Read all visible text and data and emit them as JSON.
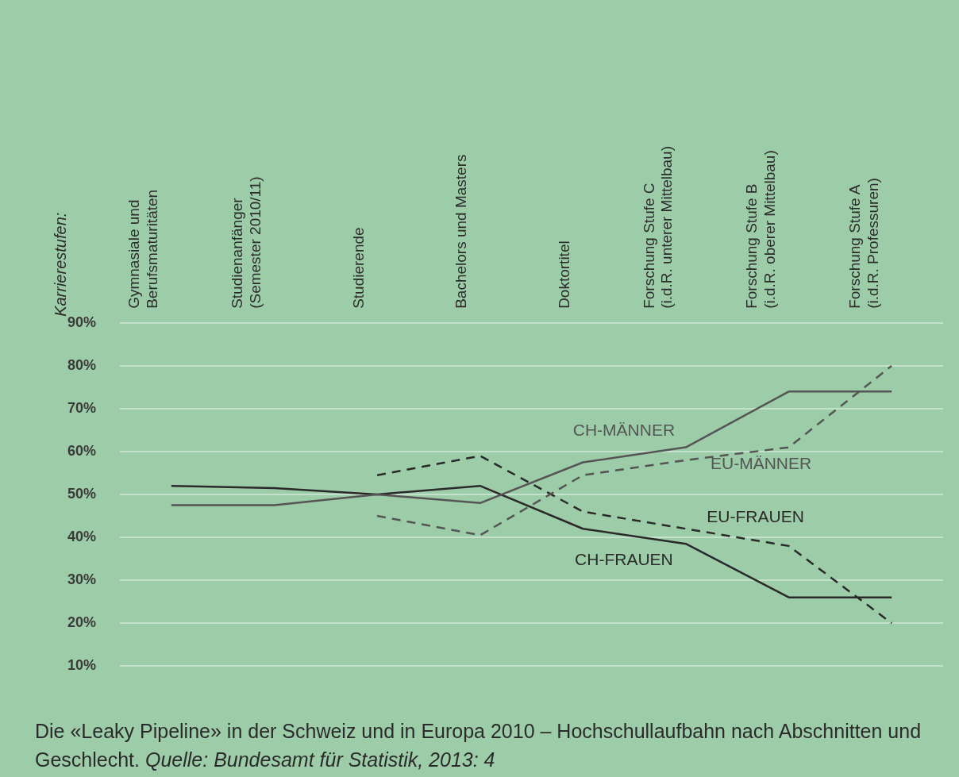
{
  "chart_data": {
    "type": "line",
    "title": "Die «Leaky Pipeline» in der Schweiz und in Europa 2010 – Hochschullaufbahn nach Abschnitten und Geschlecht.",
    "annotations": [
      "Karrierestufen:",
      "Quelle: Bundesamt für Statistik, 2013: 4"
    ],
    "categories": [
      "Gymnasiale und Berufsmaturitäten",
      "Studienanfänger (Semester 2010/11)",
      "Studierende",
      "Bachelors und Masters",
      "Doktortitel",
      "Forschung Stufe C (i.d.R. unterer Mittelbau)",
      "Forschung Stufe B (i.d.R. oberer Mittelbau)",
      "Forschung Stufe A (i.d.R. Professuren)"
    ],
    "series": [
      {
        "name": "CH-MÄNNER",
        "color": "#555555",
        "line_style": "solid",
        "values": [
          47.5,
          47.5,
          50,
          48,
          57.5,
          61,
          74,
          74
        ]
      },
      {
        "name": "CH-FRAUEN",
        "color": "#2a2a2a",
        "line_style": "solid",
        "values": [
          52,
          51.5,
          50,
          52,
          42,
          38.5,
          26,
          26
        ]
      },
      {
        "name": "EU-MÄNNER",
        "color": "#555555",
        "line_style": "dashed",
        "values": [
          null,
          null,
          45,
          40.5,
          54.5,
          58,
          61,
          80
        ]
      },
      {
        "name": "EU-FRAUEN",
        "color": "#2a2a2a",
        "line_style": "dashed",
        "values": [
          null,
          null,
          54.5,
          59,
          46,
          42,
          38,
          20
        ]
      }
    ],
    "ylim": [
      10,
      90
    ],
    "yticks": [
      {
        "value": 10,
        "label": "10%"
      },
      {
        "value": 20,
        "label": "20%"
      },
      {
        "value": 30,
        "label": "30%"
      },
      {
        "value": 40,
        "label": "40%"
      },
      {
        "value": 50,
        "label": "50%"
      },
      {
        "value": 60,
        "label": "60%"
      },
      {
        "value": 70,
        "label": "70%"
      },
      {
        "value": 80,
        "label": "80%"
      },
      {
        "value": 90,
        "label": "90%"
      }
    ],
    "grid": "y",
    "legend": false,
    "marker": "none"
  }
}
